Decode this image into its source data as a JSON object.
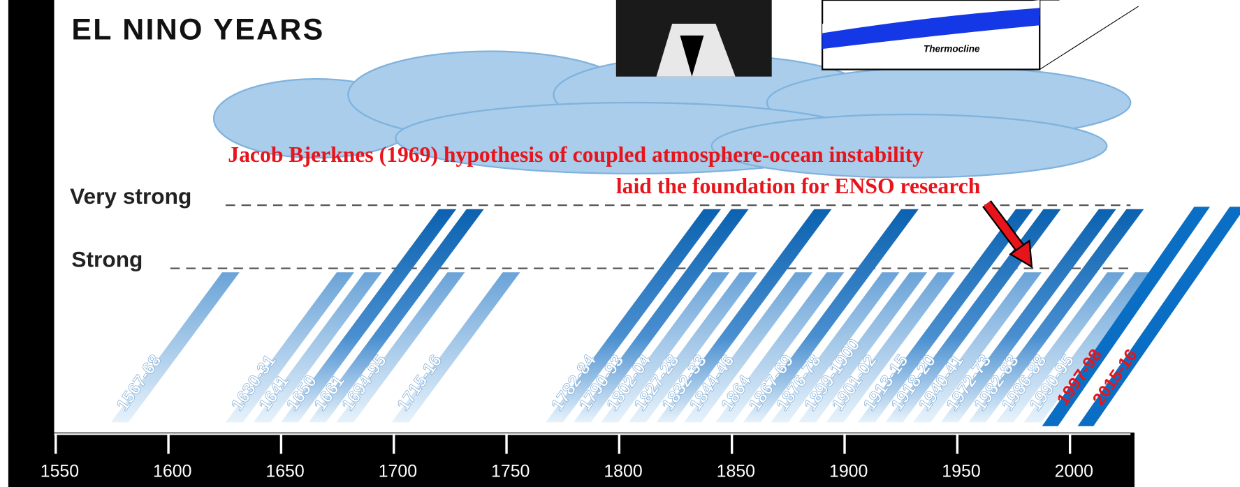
{
  "header": {
    "title": "EL NINO YEARS"
  },
  "levels": [
    "Very strong",
    "Strong"
  ],
  "annotation": {
    "lines": [
      "Jacob Bjerknes (1969) hypothesis of coupled atmosphere-ocean instability",
      "laid the foundation for ENSO research"
    ]
  },
  "inset": {
    "label": "Thermocline"
  },
  "events": [
    "1567-68",
    "1630-31",
    "1641",
    "1650",
    "1661",
    "1694-95",
    "1715-16",
    "1782-84",
    "1790-93",
    "1802-04",
    "1827-28",
    "1832-33",
    "1844-46",
    "1864",
    "1867-69",
    "1876-78",
    "1899-1900",
    "1901-02",
    "1913-15",
    "1918-20",
    "1940-41",
    "1972-73",
    "1982-83",
    "1986-88",
    "1990-95"
  ],
  "recent_events": [
    "1997-98",
    "2015-16"
  ],
  "axis": {
    "ticks": [
      "1550",
      "1600",
      "1650",
      "1700",
      "1750",
      "1800",
      "1850",
      "1900",
      "1950",
      "2000"
    ]
  }
}
